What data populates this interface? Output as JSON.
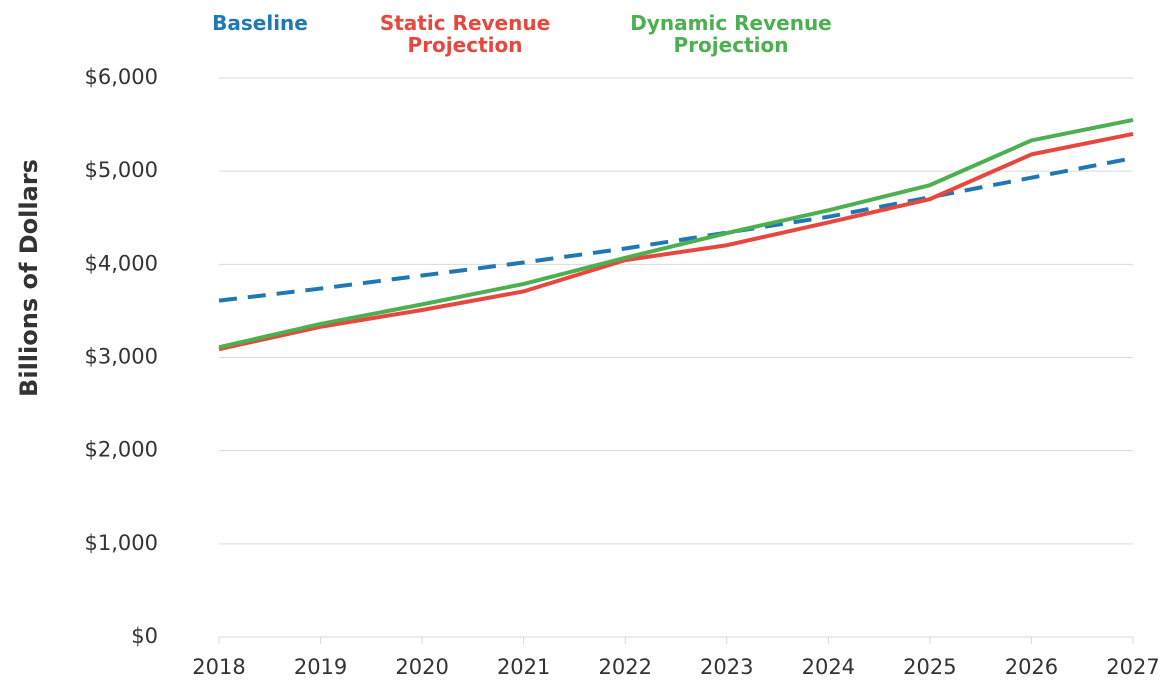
{
  "chart_data": {
    "type": "line",
    "y_label": "Billions of Dollars",
    "categories": [
      "2018",
      "2019",
      "2020",
      "2021",
      "2022",
      "2023",
      "2024",
      "2025",
      "2026",
      "2027"
    ],
    "series": [
      {
        "name": "Baseline",
        "color": "#1f77b4",
        "dashed": true,
        "values": [
          3610,
          3740,
          3880,
          4020,
          4170,
          4340,
          4510,
          4720,
          4930,
          5140
        ]
      },
      {
        "name": "Static Revenue Projection",
        "color": "#e8473f",
        "values": [
          3090,
          3330,
          3510,
          3710,
          4045,
          4205,
          4450,
          4700,
          5180,
          5400
        ]
      },
      {
        "name": "Dynamic Revenue Projection",
        "color": "#4caf50",
        "values": [
          3110,
          3360,
          3570,
          3790,
          4070,
          4335,
          4580,
          4850,
          5330,
          5550
        ]
      }
    ],
    "ylim": [
      0,
      6000
    ],
    "yticks": [
      {
        "value": 0,
        "label": "$0"
      },
      {
        "value": 1000,
        "label": "$1,000"
      },
      {
        "value": 2000,
        "label": "$2,000"
      },
      {
        "value": 3000,
        "label": "$3,000"
      },
      {
        "value": 4000,
        "label": "$4,000"
      },
      {
        "value": 5000,
        "label": "$5,000"
      },
      {
        "value": 6000,
        "label": "$6,000"
      }
    ],
    "grid": true
  }
}
